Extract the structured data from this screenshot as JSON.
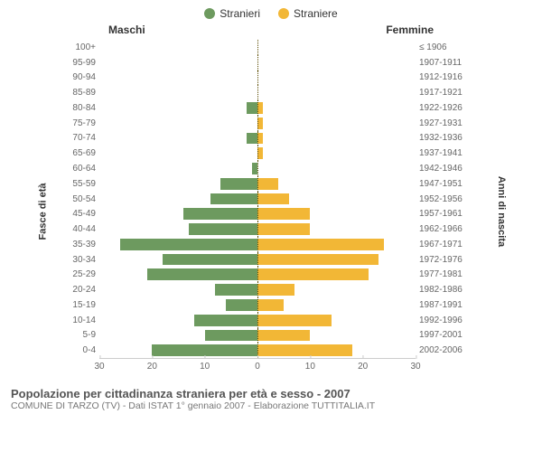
{
  "legend": {
    "male": {
      "label": "Stranieri",
      "color": "#6d9a5f"
    },
    "female": {
      "label": "Straniere",
      "color": "#f2b736"
    }
  },
  "headers": {
    "male": "Maschi",
    "female": "Femmine"
  },
  "axis_labels": {
    "left": "Fasce di età",
    "right": "Anni di nascita"
  },
  "chart": {
    "type": "population-pyramid",
    "xlim_male": [
      0,
      30
    ],
    "xlim_female": [
      0,
      30
    ],
    "xticks_male": [
      30,
      20,
      10,
      0
    ],
    "xticks_female": [
      10,
      20,
      30
    ],
    "bar_color_male": "#6d9a5f",
    "bar_color_female": "#f2b736",
    "background_color": "#ffffff",
    "centerline_color": "#5a4a00",
    "grid_color": "#cccccc",
    "label_fontsize": 10,
    "bar_height_ratio": 0.76,
    "rows": [
      {
        "age": "100+",
        "birth": "≤ 1906",
        "m": 0,
        "f": 0
      },
      {
        "age": "95-99",
        "birth": "1907-1911",
        "m": 0,
        "f": 0
      },
      {
        "age": "90-94",
        "birth": "1912-1916",
        "m": 0,
        "f": 0
      },
      {
        "age": "85-89",
        "birth": "1917-1921",
        "m": 0,
        "f": 0
      },
      {
        "age": "80-84",
        "birth": "1922-1926",
        "m": 2,
        "f": 1
      },
      {
        "age": "75-79",
        "birth": "1927-1931",
        "m": 0,
        "f": 1
      },
      {
        "age": "70-74",
        "birth": "1932-1936",
        "m": 2,
        "f": 1
      },
      {
        "age": "65-69",
        "birth": "1937-1941",
        "m": 0,
        "f": 1
      },
      {
        "age": "60-64",
        "birth": "1942-1946",
        "m": 1,
        "f": 0
      },
      {
        "age": "55-59",
        "birth": "1947-1951",
        "m": 7,
        "f": 4
      },
      {
        "age": "50-54",
        "birth": "1952-1956",
        "m": 9,
        "f": 6
      },
      {
        "age": "45-49",
        "birth": "1957-1961",
        "m": 14,
        "f": 10
      },
      {
        "age": "40-44",
        "birth": "1962-1966",
        "m": 13,
        "f": 10
      },
      {
        "age": "35-39",
        "birth": "1967-1971",
        "m": 26,
        "f": 24
      },
      {
        "age": "30-34",
        "birth": "1972-1976",
        "m": 18,
        "f": 23
      },
      {
        "age": "25-29",
        "birth": "1977-1981",
        "m": 21,
        "f": 21
      },
      {
        "age": "20-24",
        "birth": "1982-1986",
        "m": 8,
        "f": 7
      },
      {
        "age": "15-19",
        "birth": "1987-1991",
        "m": 6,
        "f": 5
      },
      {
        "age": "10-14",
        "birth": "1992-1996",
        "m": 12,
        "f": 14
      },
      {
        "age": "5-9",
        "birth": "1997-2001",
        "m": 10,
        "f": 10
      },
      {
        "age": "0-4",
        "birth": "2002-2006",
        "m": 20,
        "f": 18
      }
    ]
  },
  "caption": {
    "title": "Popolazione per cittadinanza straniera per età e sesso - 2007",
    "subtitle": "COMUNE DI TARZO (TV) - Dati ISTAT 1° gennaio 2007 - Elaborazione TUTTITALIA.IT"
  }
}
